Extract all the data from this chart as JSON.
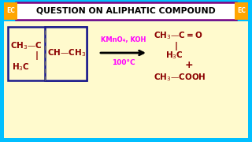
{
  "title": "QUESTION ON ALIPHATIC COMPOUND",
  "title_fontsize": 7.8,
  "title_color": "#000000",
  "title_bg": "#ffffff",
  "title_border": "#800080",
  "bg_outer": "#00BFFF",
  "bg_inner": "#FFFACD",
  "ec_bg": "#FFA500",
  "ec_text": "EC",
  "reactant_color": "#8B0000",
  "product_color": "#8B0000",
  "reagent_color": "#FF00FF",
  "condition_color": "#FF00FF",
  "reagent_text": "KMnO₄, KOH",
  "condition_text": "100°C",
  "plus": "+"
}
